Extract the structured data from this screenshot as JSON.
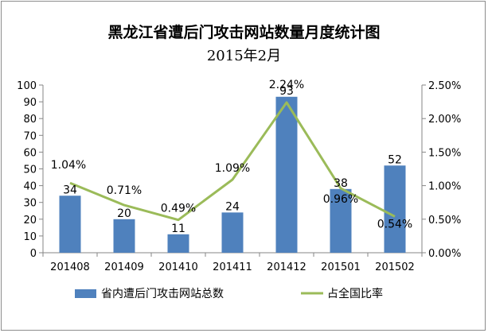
{
  "chart_data": {
    "type": "bar",
    "title": "黑龙江省遭后门攻击网站数量月度统计图",
    "subtitle": "2015年2月",
    "categories": [
      "201408",
      "201409",
      "201410",
      "201411",
      "201412",
      "201501",
      "201502"
    ],
    "series": [
      {
        "name": "省内遭后门攻击网站总数",
        "kind": "bar",
        "axis": "left",
        "color": "#4f81bd",
        "values": [
          34,
          20,
          11,
          24,
          93,
          38,
          52
        ],
        "value_labels": [
          "34",
          "20",
          "11",
          "24",
          "93",
          "38",
          "52"
        ]
      },
      {
        "name": "占全国比率",
        "kind": "line",
        "axis": "right",
        "color": "#9bbb59",
        "values": [
          1.04,
          0.71,
          0.49,
          1.09,
          2.24,
          0.96,
          0.54
        ],
        "value_labels": [
          "1.04%",
          "0.71%",
          "0.49%",
          "1.09%",
          "2.24%",
          "0.96%",
          "0.54%"
        ]
      }
    ],
    "y_left": {
      "ylim": [
        0,
        100
      ],
      "ticks": [
        0,
        10,
        20,
        30,
        40,
        50,
        60,
        70,
        80,
        90,
        100
      ],
      "tick_labels": [
        "0",
        "10",
        "20",
        "30",
        "40",
        "50",
        "60",
        "70",
        "80",
        "90",
        "100"
      ]
    },
    "y_right": {
      "ylim": [
        0,
        2.5
      ],
      "ticks": [
        0,
        0.5,
        1.0,
        1.5,
        2.0,
        2.5
      ],
      "tick_labels": [
        "0.00%",
        "0.50%",
        "1.00%",
        "1.50%",
        "2.00%",
        "2.50%"
      ]
    },
    "grid": false,
    "legend": "bottom"
  }
}
